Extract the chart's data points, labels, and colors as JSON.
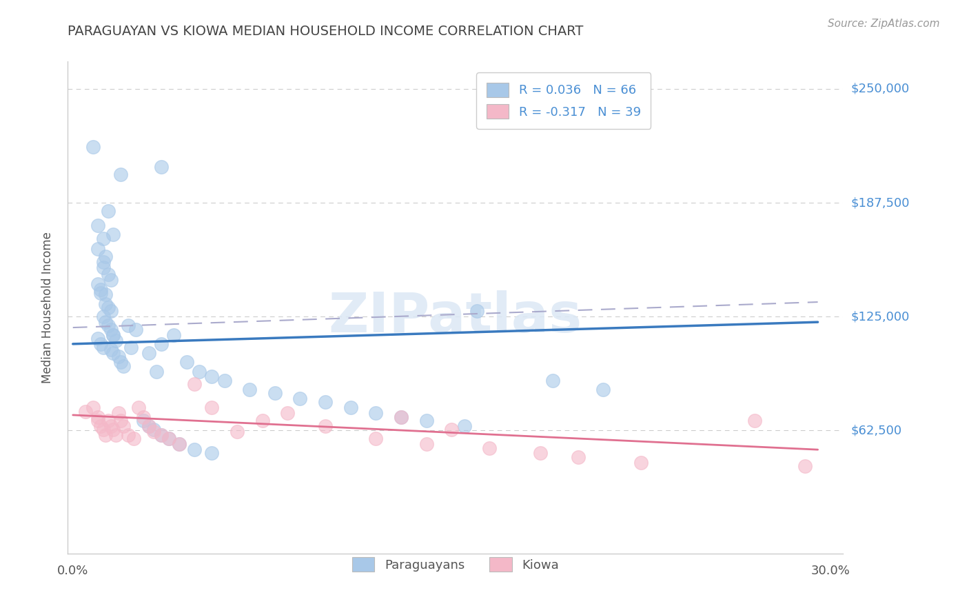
{
  "title": "PARAGUAYAN VS KIOWA MEDIAN HOUSEHOLD INCOME CORRELATION CHART",
  "source": "Source: ZipAtlas.com",
  "ylabel": "Median Household Income",
  "ylim": [
    -5000,
    265000
  ],
  "xlim": [
    -0.002,
    0.305
  ],
  "legend_blue_label": "R = 0.036   N = 66",
  "legend_pink_label": "R = -0.317   N = 39",
  "blue_scatter_color": "#a8c8e8",
  "pink_scatter_color": "#f4b8c8",
  "blue_line_color": "#3a7abf",
  "pink_line_color": "#e07090",
  "dash_line_color": "#aaaacc",
  "watermark_color": "#dce8f5",
  "background_color": "#ffffff",
  "ytick_vals": [
    62500,
    125000,
    187500,
    250000
  ],
  "ytick_labels": [
    "$62,500",
    "$125,000",
    "$187,500",
    "$250,000"
  ],
  "blue_line_y0": 110000,
  "blue_line_y1": 122000,
  "dash_line_y0": 119000,
  "dash_line_y1": 133000,
  "pink_line_y0": 71000,
  "pink_line_y1": 52000,
  "paraguayan_x": [
    0.008,
    0.019,
    0.014,
    0.016,
    0.035,
    0.01,
    0.012,
    0.01,
    0.012,
    0.013,
    0.012,
    0.014,
    0.015,
    0.01,
    0.011,
    0.011,
    0.013,
    0.013,
    0.014,
    0.015,
    0.012,
    0.013,
    0.014,
    0.015,
    0.016,
    0.01,
    0.011,
    0.012,
    0.016,
    0.017,
    0.015,
    0.016,
    0.018,
    0.019,
    0.02,
    0.022,
    0.023,
    0.025,
    0.03,
    0.033,
    0.035,
    0.04,
    0.045,
    0.05,
    0.055,
    0.06,
    0.07,
    0.08,
    0.09,
    0.1,
    0.11,
    0.12,
    0.13,
    0.14,
    0.155,
    0.028,
    0.03,
    0.032,
    0.035,
    0.038,
    0.042,
    0.048,
    0.055,
    0.16,
    0.19,
    0.21
  ],
  "paraguayan_y": [
    218000,
    203000,
    183000,
    170000,
    207000,
    175000,
    168000,
    162000,
    155000,
    158000,
    152000,
    148000,
    145000,
    143000,
    140000,
    138000,
    137000,
    132000,
    130000,
    128000,
    125000,
    122000,
    120000,
    118000,
    115000,
    113000,
    110000,
    108000,
    115000,
    112000,
    107000,
    105000,
    103000,
    100000,
    98000,
    120000,
    108000,
    118000,
    105000,
    95000,
    110000,
    115000,
    100000,
    95000,
    92000,
    90000,
    85000,
    83000,
    80000,
    78000,
    75000,
    72000,
    70000,
    68000,
    65000,
    68000,
    65000,
    63000,
    60000,
    58000,
    55000,
    52000,
    50000,
    128000,
    90000,
    85000
  ],
  "kiowa_x": [
    0.005,
    0.008,
    0.01,
    0.01,
    0.011,
    0.012,
    0.013,
    0.014,
    0.015,
    0.016,
    0.017,
    0.018,
    0.019,
    0.02,
    0.022,
    0.024,
    0.026,
    0.028,
    0.03,
    0.032,
    0.035,
    0.038,
    0.042,
    0.048,
    0.055,
    0.065,
    0.075,
    0.085,
    0.1,
    0.12,
    0.14,
    0.165,
    0.185,
    0.2,
    0.225,
    0.13,
    0.15,
    0.27,
    0.29
  ],
  "kiowa_y": [
    73000,
    75000,
    70000,
    68000,
    65000,
    63000,
    60000,
    68000,
    65000,
    63000,
    60000,
    72000,
    68000,
    65000,
    60000,
    58000,
    75000,
    70000,
    65000,
    62000,
    60000,
    58000,
    55000,
    88000,
    75000,
    62000,
    68000,
    72000,
    65000,
    58000,
    55000,
    53000,
    50000,
    48000,
    45000,
    70000,
    63000,
    68000,
    43000
  ]
}
